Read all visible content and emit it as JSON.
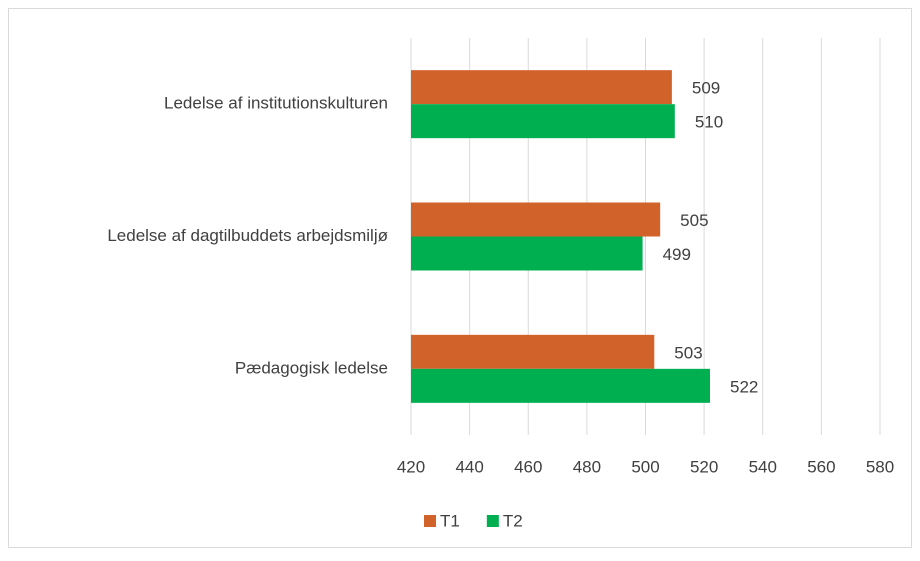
{
  "chart_data": {
    "type": "bar",
    "orientation": "horizontal",
    "categories": [
      "Ledelse af institutionskulturen",
      "Ledelse af dagtilbuddets arbejdsmiljø",
      "Pædagogisk ledelse"
    ],
    "series": [
      {
        "name": "T1",
        "color": "#d0622a",
        "values": [
          509,
          505,
          503
        ]
      },
      {
        "name": "T2",
        "color": "#00b050",
        "values": [
          510,
          499,
          522
        ]
      }
    ],
    "xlim": [
      420,
      580
    ],
    "xticks": [
      420,
      440,
      460,
      480,
      500,
      520,
      540,
      560,
      580
    ],
    "grid": true,
    "legend": "bottom"
  }
}
